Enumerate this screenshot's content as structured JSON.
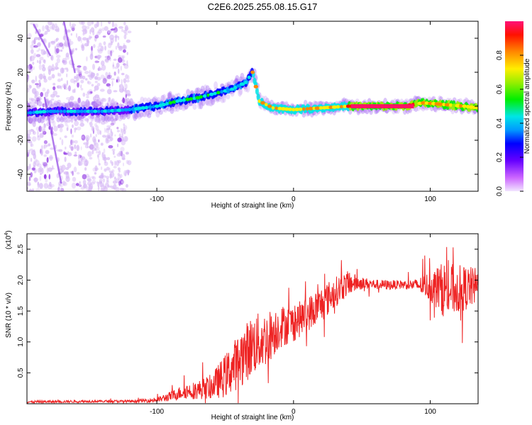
{
  "figure_title": "C2E6.2025.255.08.15.G17",
  "chart_data": [
    {
      "type": "heatmap",
      "name": "spectrogram",
      "xlabel": "Height of straight line (km)",
      "ylabel": "Frequency (Hz)",
      "xlim": [
        -195,
        135
      ],
      "ylim": [
        -50,
        50
      ],
      "xticks": [
        -100,
        0,
        100
      ],
      "yticks": [
        -40,
        -20,
        0,
        20,
        40
      ],
      "ridge": [
        {
          "x": -195,
          "y": -4
        },
        {
          "x": -180,
          "y": -3
        },
        {
          "x": -160,
          "y": -3
        },
        {
          "x": -140,
          "y": -3
        },
        {
          "x": -120,
          "y": -2
        },
        {
          "x": -100,
          "y": 0
        },
        {
          "x": -85,
          "y": 3
        },
        {
          "x": -70,
          "y": 5
        },
        {
          "x": -55,
          "y": 8
        },
        {
          "x": -45,
          "y": 10
        },
        {
          "x": -35,
          "y": 14
        },
        {
          "x": -30,
          "y": 20
        },
        {
          "x": -25,
          "y": 3
        },
        {
          "x": -15,
          "y": -1
        },
        {
          "x": 0,
          "y": -2
        },
        {
          "x": 20,
          "y": -1
        },
        {
          "x": 40,
          "y": 0
        },
        {
          "x": 60,
          "y": 0
        },
        {
          "x": 80,
          "y": 0
        },
        {
          "x": 95,
          "y": 2
        },
        {
          "x": 110,
          "y": 1
        },
        {
          "x": 125,
          "y": 0
        },
        {
          "x": 135,
          "y": -1
        }
      ],
      "colorbar": {
        "label": "Normalized spectral amplitude",
        "range": [
          0,
          1
        ],
        "ticks": [
          "0.0",
          "0.2",
          "0.4",
          "0.6",
          "0.8"
        ],
        "tick_values": [
          0,
          0.2,
          0.4,
          0.6,
          0.8
        ]
      }
    },
    {
      "type": "line",
      "name": "snr",
      "xlabel": "Height of straight line (km)",
      "ylabel": "SNR (10 * v/v)",
      "exponent_label": "(x10",
      "exponent_power": "4",
      "exponent_close": ")",
      "xlim": [
        -195,
        135
      ],
      "ylim": [
        0,
        2.75
      ],
      "xticks": [
        -100,
        0,
        100
      ],
      "yticks": [
        0.5,
        1.0,
        1.5,
        2.0,
        2.5
      ],
      "ytick_labels": [
        "0.5",
        "1.0",
        "1.5",
        "2.0",
        "2.5"
      ],
      "color": "#ee2222",
      "envelope": {
        "x": [
          -195,
          -150,
          -120,
          -100,
          -90,
          -80,
          -70,
          -60,
          -50,
          -40,
          -30,
          -20,
          -10,
          0,
          10,
          20,
          30,
          40,
          50,
          60,
          70,
          80,
          90,
          100,
          110,
          120,
          135
        ],
        "base": [
          0.03,
          0.04,
          0.04,
          0.06,
          0.12,
          0.2,
          0.22,
          0.28,
          0.45,
          0.7,
          0.95,
          1.05,
          1.25,
          1.3,
          1.45,
          1.6,
          1.8,
          1.95,
          1.95,
          1.93,
          1.92,
          1.93,
          1.92,
          1.9,
          1.85,
          1.85,
          1.9
        ],
        "amp": [
          0.02,
          0.02,
          0.02,
          0.04,
          0.08,
          0.12,
          0.15,
          0.2,
          0.35,
          0.45,
          0.5,
          0.45,
          0.35,
          0.3,
          0.28,
          0.3,
          0.25,
          0.2,
          0.1,
          0.08,
          0.08,
          0.07,
          0.1,
          0.25,
          0.45,
          0.4,
          0.3
        ]
      }
    }
  ]
}
